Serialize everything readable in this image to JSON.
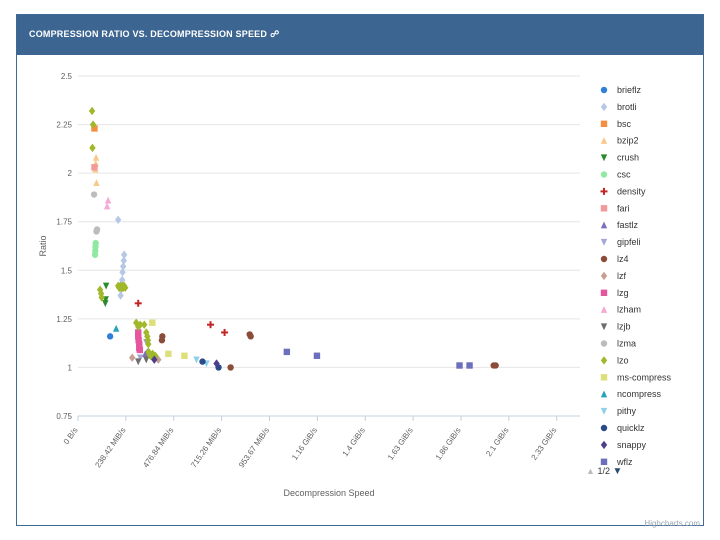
{
  "header": {
    "title": "COMPRESSION RATIO VS. DECOMPRESSION SPEED",
    "link_icon": "link-icon"
  },
  "credits": "Highcharts.com",
  "legend_pager": {
    "text": "1/2",
    "up_icon": "triangle-up-icon",
    "down_icon": "triangle-down-icon"
  },
  "chart_data": {
    "type": "scatter",
    "title": "COMPRESSION RATIO VS. DECOMPRESSION SPEED",
    "xlabel": "Decompression Speed",
    "ylabel": "Ratio",
    "xlim": [
      0,
      2500
    ],
    "ylim": [
      0.75,
      2.5
    ],
    "x_unit": "MiB/s",
    "x_ticks": [
      0,
      238.42,
      476.84,
      715.26,
      953.67,
      1192.09,
      1430.51,
      1668.93,
      1907.35,
      2145.77,
      2384.19
    ],
    "x_tick_labels": [
      "0 B/s",
      "238.42 MiB/s",
      "476.84 MiB/s",
      "715.26 MiB/s",
      "953.67 MiB/s",
      "1.16 GiB/s",
      "1.4 GiB/s",
      "1.63 GiB/s",
      "1.86 GiB/s",
      "2.1 GiB/s",
      "2.33 GiB/s"
    ],
    "y_ticks": [
      0.75,
      1,
      1.25,
      1.5,
      1.75,
      2,
      2.25,
      2.5
    ],
    "y_tick_labels": [
      "0.75",
      "1",
      "1.25",
      "1.5",
      "1.75",
      "2",
      "2.25",
      "2.5"
    ],
    "legend_position": "right",
    "series": [
      {
        "name": "brieflz",
        "color": "#2f7ed8",
        "symbol": "circle",
        "points": [
          [
            160,
            1.16
          ]
        ]
      },
      {
        "name": "brotli",
        "color": "#b6c8e6",
        "symbol": "diamond",
        "points": [
          [
            200,
            1.76
          ],
          [
            230,
            1.58
          ],
          [
            228,
            1.55
          ],
          [
            225,
            1.52
          ],
          [
            222,
            1.49
          ],
          [
            220,
            1.45
          ],
          [
            218,
            1.43
          ],
          [
            215,
            1.4
          ],
          [
            212,
            1.37
          ]
        ]
      },
      {
        "name": "bsc",
        "color": "#f28f43",
        "symbol": "square",
        "points": [
          [
            82,
            2.23
          ]
        ]
      },
      {
        "name": "bzip2",
        "color": "#f8c98a",
        "symbol": "triangle",
        "points": [
          [
            90,
            2.08
          ],
          [
            88,
            2.05
          ],
          [
            86,
            2.02
          ],
          [
            92,
            1.95
          ]
        ]
      },
      {
        "name": "crush",
        "color": "#2b8a2b",
        "symbol": "triangle-down",
        "points": [
          [
            140,
            1.42
          ],
          [
            138,
            1.35
          ],
          [
            136,
            1.33
          ]
        ]
      },
      {
        "name": "csc",
        "color": "#91e8a1",
        "symbol": "circle",
        "points": [
          [
            88,
            1.64
          ],
          [
            87,
            1.62
          ],
          [
            86,
            1.6
          ],
          [
            85,
            1.58
          ]
        ]
      },
      {
        "name": "density",
        "color": "#c42525",
        "symbol": "cross",
        "points": [
          [
            300,
            1.33
          ],
          [
            660,
            1.22
          ],
          [
            730,
            1.18
          ]
        ]
      },
      {
        "name": "fari",
        "color": "#f29999",
        "symbol": "square",
        "points": [
          [
            82,
            2.03
          ]
        ]
      },
      {
        "name": "fastlz",
        "color": "#7d6fb8",
        "symbol": "triangle",
        "points": [
          [
            345,
            1.08
          ],
          [
            335,
            1.07
          ]
        ]
      },
      {
        "name": "gipfeli",
        "color": "#a6a6d8",
        "symbol": "triangle-down",
        "points": [
          [
            340,
            1.13
          ],
          [
            310,
            1.05
          ]
        ]
      },
      {
        "name": "lz4",
        "color": "#8b4c3a",
        "symbol": "circle",
        "points": [
          [
            420,
            1.16
          ],
          [
            418,
            1.14
          ],
          [
            855,
            1.17
          ],
          [
            860,
            1.16
          ],
          [
            760,
            1.0
          ],
          [
            2070,
            1.01
          ],
          [
            2080,
            1.01
          ]
        ]
      },
      {
        "name": "lzf",
        "color": "#c7a092",
        "symbol": "diamond",
        "points": [
          [
            270,
            1.05
          ],
          [
            400,
            1.04
          ]
        ]
      },
      {
        "name": "lzg",
        "color": "#e5569f",
        "symbol": "square",
        "points": [
          [
            300,
            1.18
          ],
          [
            300,
            1.16
          ],
          [
            302,
            1.14
          ],
          [
            305,
            1.12
          ],
          [
            305,
            1.1
          ],
          [
            308,
            1.09
          ]
        ]
      },
      {
        "name": "lzham",
        "color": "#f4aad4",
        "symbol": "triangle",
        "points": [
          [
            150,
            1.86
          ],
          [
            145,
            1.83
          ]
        ]
      },
      {
        "name": "lzjb",
        "color": "#6e6e6e",
        "symbol": "triangle-down",
        "points": [
          [
            300,
            1.03
          ],
          [
            340,
            1.04
          ]
        ]
      },
      {
        "name": "lzma",
        "color": "#bcbcbc",
        "symbol": "circle",
        "points": [
          [
            80,
            1.89
          ],
          [
            95,
            1.71
          ],
          [
            92,
            1.7
          ]
        ]
      },
      {
        "name": "lzo",
        "color": "#a0b82a",
        "symbol": "diamond",
        "points": [
          [
            70,
            2.32
          ],
          [
            75,
            2.25
          ],
          [
            72,
            2.13
          ],
          [
            110,
            1.4
          ],
          [
            115,
            1.38
          ],
          [
            118,
            1.36
          ],
          [
            200,
            1.42
          ],
          [
            205,
            1.41
          ],
          [
            210,
            1.42
          ],
          [
            215,
            1.41
          ],
          [
            220,
            1.42
          ],
          [
            225,
            1.41
          ],
          [
            230,
            1.42
          ],
          [
            235,
            1.41
          ],
          [
            290,
            1.23
          ],
          [
            300,
            1.21
          ],
          [
            310,
            1.22
          ],
          [
            330,
            1.22
          ],
          [
            340,
            1.18
          ],
          [
            345,
            1.16
          ],
          [
            348,
            1.14
          ],
          [
            350,
            1.12
          ],
          [
            352,
            1.08
          ],
          [
            355,
            1.07
          ],
          [
            360,
            1.06
          ],
          [
            365,
            1.06
          ],
          [
            372,
            1.07
          ],
          [
            380,
            1.06
          ],
          [
            385,
            1.06
          ]
        ]
      },
      {
        "name": "ms-compress",
        "color": "#dde07a",
        "symbol": "square",
        "points": [
          [
            370,
            1.23
          ],
          [
            450,
            1.07
          ],
          [
            530,
            1.06
          ]
        ]
      },
      {
        "name": "ncompress",
        "color": "#27a3b8",
        "symbol": "triangle",
        "points": [
          [
            190,
            1.2
          ]
        ]
      },
      {
        "name": "pithy",
        "color": "#8fd1ea",
        "symbol": "triangle-down",
        "points": [
          [
            590,
            1.04
          ],
          [
            640,
            1.02
          ]
        ]
      },
      {
        "name": "quicklz",
        "color": "#2b4a8a",
        "symbol": "circle",
        "points": [
          [
            620,
            1.03
          ],
          [
            700,
            1.0
          ]
        ]
      },
      {
        "name": "snappy",
        "color": "#4e3f8c",
        "symbol": "diamond",
        "points": [
          [
            380,
            1.04
          ],
          [
            690,
            1.02
          ]
        ]
      },
      {
        "name": "wflz",
        "color": "#6b6fbd",
        "symbol": "square",
        "points": [
          [
            1040,
            1.08
          ],
          [
            1190,
            1.06
          ],
          [
            1900,
            1.01
          ],
          [
            1950,
            1.01
          ]
        ]
      }
    ]
  }
}
